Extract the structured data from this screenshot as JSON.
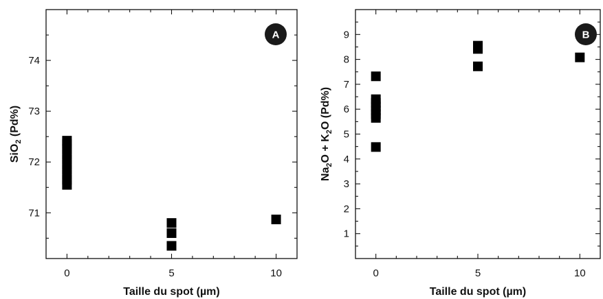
{
  "chart_data": [
    {
      "type": "scatter",
      "panel_label": "A",
      "xlabel": "Taille du spot (µm)",
      "ylabel_parts": [
        {
          "text": "SiO",
          "sub": false
        },
        {
          "text": "2",
          "sub": true
        },
        {
          "text": " (Pd%)",
          "sub": false
        }
      ],
      "xlim": [
        -1,
        11
      ],
      "ylim": [
        70.1,
        75
      ],
      "xticks": [
        0,
        5,
        10
      ],
      "yticks": [
        71,
        72,
        73,
        74
      ],
      "x_minor_step": 1,
      "y_minor_step": 0.5,
      "marker_color": "#000000",
      "badge_color": "#1a1a1a",
      "points": [
        {
          "x": 0,
          "y": 71.55
        },
        {
          "x": 0,
          "y": 71.65
        },
        {
          "x": 0,
          "y": 71.75
        },
        {
          "x": 0,
          "y": 71.85
        },
        {
          "x": 0,
          "y": 71.95
        },
        {
          "x": 0,
          "y": 72.05
        },
        {
          "x": 0,
          "y": 72.15
        },
        {
          "x": 0,
          "y": 72.25
        },
        {
          "x": 0,
          "y": 72.35
        },
        {
          "x": 0,
          "y": 72.42
        },
        {
          "x": 5,
          "y": 70.35
        },
        {
          "x": 5,
          "y": 70.6
        },
        {
          "x": 5,
          "y": 70.8
        },
        {
          "x": 10,
          "y": 70.87
        }
      ]
    },
    {
      "type": "scatter",
      "panel_label": "B",
      "xlabel": "Taille du spot (µm)",
      "ylabel_parts": [
        {
          "text": "Na",
          "sub": false
        },
        {
          "text": "2",
          "sub": true
        },
        {
          "text": "O + K",
          "sub": false
        },
        {
          "text": "2",
          "sub": true
        },
        {
          "text": "O (Pd%)",
          "sub": false
        }
      ],
      "xlim": [
        -1,
        11
      ],
      "ylim": [
        0,
        10
      ],
      "xticks": [
        0,
        5,
        10
      ],
      "yticks": [
        1,
        2,
        3,
        4,
        5,
        6,
        7,
        8,
        9
      ],
      "x_minor_step": 1,
      "y_minor_step": 0.5,
      "marker_color": "#000000",
      "badge_color": "#1a1a1a",
      "points": [
        {
          "x": 0,
          "y": 4.48
        },
        {
          "x": 0,
          "y": 5.65
        },
        {
          "x": 0,
          "y": 5.8
        },
        {
          "x": 0,
          "y": 5.95
        },
        {
          "x": 0,
          "y": 6.1
        },
        {
          "x": 0,
          "y": 6.25
        },
        {
          "x": 0,
          "y": 6.4
        },
        {
          "x": 0,
          "y": 7.32
        },
        {
          "x": 5,
          "y": 7.72
        },
        {
          "x": 5,
          "y": 8.42
        },
        {
          "x": 5,
          "y": 8.55
        },
        {
          "x": 10,
          "y": 8.08
        }
      ]
    }
  ]
}
